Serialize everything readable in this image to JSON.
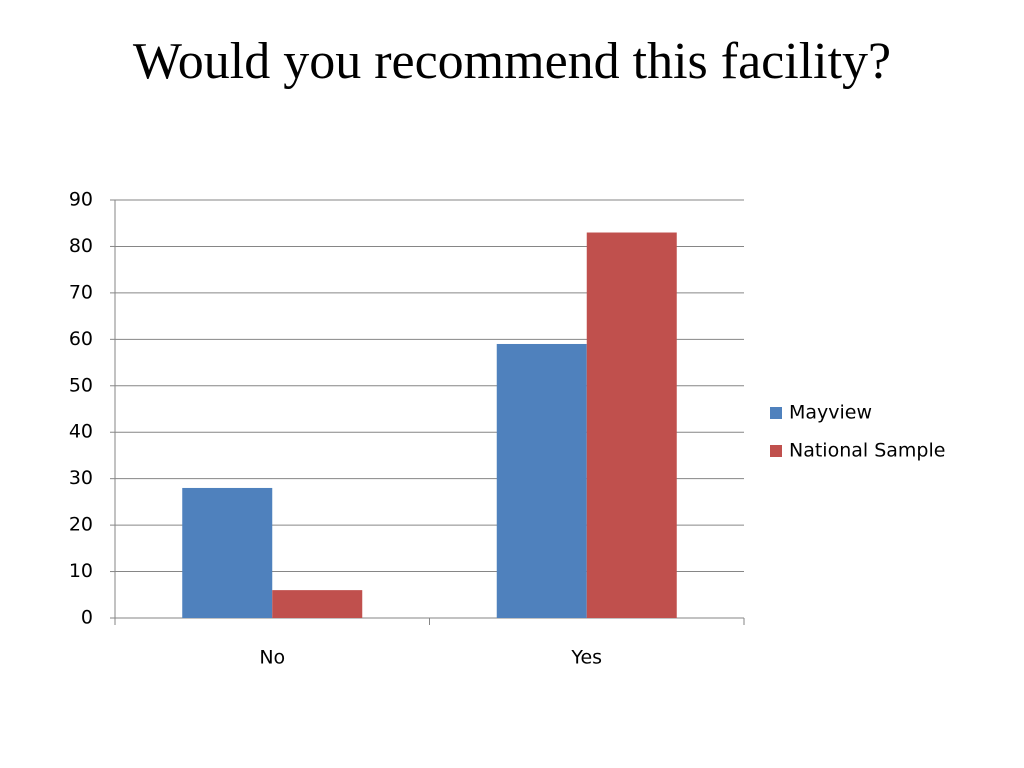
{
  "chart_data": {
    "type": "bar",
    "title": "Would you recommend this facility?",
    "categories": [
      "No",
      "Yes"
    ],
    "series": [
      {
        "name": "Mayview",
        "color": "#4f81bd",
        "values": [
          28,
          59
        ]
      },
      {
        "name": "National Sample",
        "color": "#c0504d",
        "values": [
          6,
          83
        ]
      }
    ],
    "ylim": [
      0,
      90
    ],
    "yticks": [
      0,
      10,
      20,
      30,
      40,
      50,
      60,
      70,
      80,
      90
    ],
    "grid": true,
    "legend": "right"
  }
}
